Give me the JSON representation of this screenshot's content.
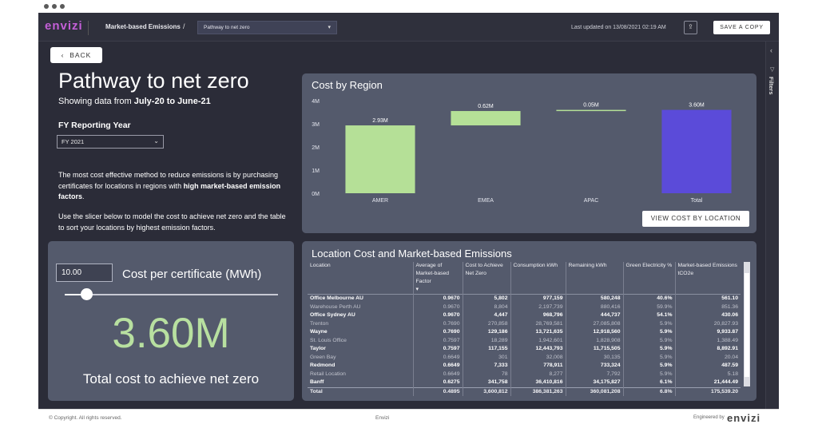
{
  "app": {
    "logo": "envizi",
    "breadcrumb": "Market-based Emissions",
    "breadcrumb_slash": "/",
    "view_selected": "Pathway to net zero",
    "last_updated": "Last updated on 13/08/2021 02:19 AM",
    "save_copy": "SAVE A COPY",
    "filters_label": "Filters"
  },
  "back_label": "BACK",
  "page": {
    "title": "Pathway to net zero",
    "subtitle_prefix": "Showing data from ",
    "subtitle_range": "July-20 to June-21",
    "fy_label": "FY Reporting Year",
    "fy_value": "FY 2021",
    "desc1_a": "The most cost effective method to reduce emissions is by purchasing certificates for locations in regions with ",
    "desc1_b": "high market-based emission factors",
    "desc1_c": ".",
    "desc2": "Use the slicer below to model the cost to achieve net zero and the table to sort your locations by highest emission factors."
  },
  "slicer": {
    "input_value": "10.00",
    "label": "Cost per certificate (MWh)",
    "slider_fraction": 0.1,
    "big_value": "3.60M",
    "total_label": "Total cost to achieve net zero"
  },
  "chart_data": {
    "type": "bar",
    "title": "Cost by Region",
    "categories": [
      "AMER",
      "EMEA",
      "APAC",
      "Total"
    ],
    "values": [
      2.93,
      0.62,
      0.05,
      3.6
    ],
    "data_labels": [
      "2.93M",
      "0.62M",
      "0.05M",
      "3.60M"
    ],
    "y_ticks": [
      "0M",
      "1M",
      "2M",
      "3M",
      "4M"
    ],
    "ylim": [
      0,
      4
    ],
    "waterfall": true,
    "colors": {
      "increase": "#b5e097",
      "total": "#5b4bd9"
    },
    "button": "VIEW COST BY LOCATION"
  },
  "table": {
    "title": "Location Cost and Market-based Emissions",
    "headers": [
      "Location",
      "Average of Market-based Factor",
      "Cost to Achieve Net Zero",
      "Consumption kWh",
      "Remaining kWh",
      "Green Electricity %",
      "Market-based Emissions tCO2e"
    ],
    "rows": [
      {
        "style": "bright",
        "cells": [
          "Office Melbourne AU",
          "0.9670",
          "5,802",
          "977,159",
          "580,248",
          "40.6%",
          "561.10"
        ]
      },
      {
        "style": "dim",
        "cells": [
          "Warehouse Perth AU",
          "0.9670",
          "8,804",
          "2,197,739",
          "880,416",
          "59.9%",
          "851.36"
        ]
      },
      {
        "style": "bright",
        "cells": [
          "Office Sydney AU",
          "0.9670",
          "4,447",
          "968,796",
          "444,737",
          "54.1%",
          "430.06"
        ]
      },
      {
        "style": "dim",
        "cells": [
          "Trenton",
          "0.7690",
          "270,858",
          "28,769,581",
          "27,085,808",
          "5.9%",
          "20,827.93"
        ]
      },
      {
        "style": "bright",
        "cells": [
          "Wayne",
          "0.7690",
          "129,186",
          "13,721,635",
          "12,918,560",
          "5.9%",
          "9,933.87"
        ]
      },
      {
        "style": "dim",
        "cells": [
          "St. Louis Office",
          "0.7597",
          "18,289",
          "1,942,601",
          "1,828,908",
          "5.9%",
          "1,388.49"
        ]
      },
      {
        "style": "bright",
        "cells": [
          "Taylor",
          "0.7597",
          "117,155",
          "12,443,793",
          "11,715,505",
          "5.9%",
          "8,892.91"
        ]
      },
      {
        "style": "dim",
        "cells": [
          "Green Bay",
          "0.6649",
          "301",
          "32,008",
          "30,135",
          "5.9%",
          "20.04"
        ]
      },
      {
        "style": "bright",
        "cells": [
          "Redmond",
          "0.6649",
          "7,333",
          "778,911",
          "733,324",
          "5.9%",
          "487.59"
        ]
      },
      {
        "style": "dim",
        "cells": [
          "Retail Location",
          "0.6649",
          "78",
          "8,277",
          "7,792",
          "5.9%",
          "5.18"
        ]
      },
      {
        "style": "bright",
        "cells": [
          "Banff",
          "0.6275",
          "341,758",
          "36,410,816",
          "34,175,827",
          "6.1%",
          "21,444.49"
        ]
      }
    ],
    "total": [
      "Total",
      "0.4895",
      "3,600,812",
      "386,381,263",
      "360,081,208",
      "6.8%",
      "175,539.20"
    ]
  },
  "footer": {
    "copyright": "© Copyright. All rights reserved.",
    "center": "Envizi",
    "engineered": "Engineered by",
    "brand": "envizi"
  }
}
